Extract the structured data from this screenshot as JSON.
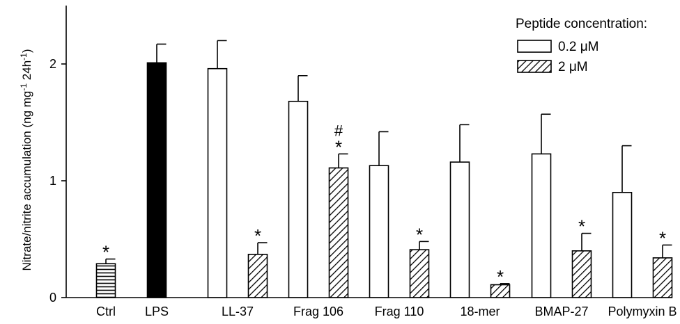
{
  "chart_data": {
    "type": "bar",
    "title": "",
    "xlabel": "",
    "ylabel": "Nitrate/nitrite accumulation (ng mg",
    "ylabel_sup1": "-1",
    "ylabel_mid": " 24h",
    "ylabel_sup2": "-1",
    "ylabel_end": ")",
    "ylim": [
      0,
      2.5
    ],
    "yticks": [
      "0",
      "1",
      "2"
    ],
    "grid": false,
    "legend": {
      "title": "Peptide concentration:",
      "placement": "top-right",
      "entries": [
        "0.2 μM",
        "2 μM"
      ]
    },
    "groups": [
      {
        "label": "Ctrl",
        "bars": [
          {
            "style": "horizontal",
            "value": 0.29,
            "error": 0.04,
            "annotation": "*"
          }
        ]
      },
      {
        "label": "LPS",
        "bars": [
          {
            "style": "solid",
            "value": 2.01,
            "error": 0.16,
            "annotation": ""
          }
        ]
      },
      {
        "label": "LL-37",
        "bars": [
          {
            "style": "open",
            "value": 1.96,
            "error": 0.24,
            "annotation": ""
          },
          {
            "style": "hatched",
            "value": 0.37,
            "error": 0.1,
            "annotation": "*"
          }
        ]
      },
      {
        "label": "Frag 106",
        "bars": [
          {
            "style": "open",
            "value": 1.68,
            "error": 0.22,
            "annotation": ""
          },
          {
            "style": "hatched",
            "value": 1.11,
            "error": 0.12,
            "annotation": "*",
            "annotation2": "#"
          }
        ]
      },
      {
        "label": "Frag 110",
        "bars": [
          {
            "style": "open",
            "value": 1.13,
            "error": 0.29,
            "annotation": ""
          },
          {
            "style": "hatched",
            "value": 0.41,
            "error": 0.07,
            "annotation": "*"
          }
        ]
      },
      {
        "label": "18-mer",
        "bars": [
          {
            "style": "open",
            "value": 1.16,
            "error": 0.32,
            "annotation": ""
          },
          {
            "style": "hatched",
            "value": 0.11,
            "error": 0.01,
            "annotation": "*"
          }
        ]
      },
      {
        "label": "BMAP-27",
        "bars": [
          {
            "style": "open",
            "value": 1.23,
            "error": 0.34,
            "annotation": ""
          },
          {
            "style": "hatched",
            "value": 0.4,
            "error": 0.15,
            "annotation": "*"
          }
        ]
      },
      {
        "label": "Polymyxin B",
        "bars": [
          {
            "style": "open",
            "value": 0.9,
            "error": 0.4,
            "annotation": ""
          },
          {
            "style": "hatched",
            "value": 0.34,
            "error": 0.11,
            "annotation": "*"
          }
        ]
      }
    ]
  }
}
